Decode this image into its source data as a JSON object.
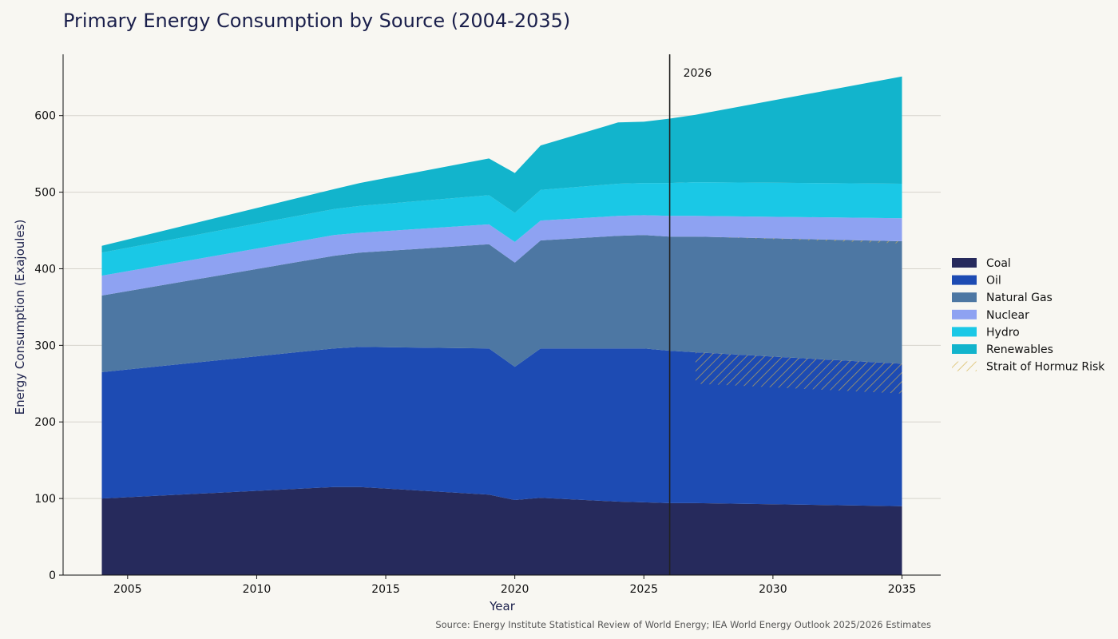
{
  "chart_data": {
    "type": "area",
    "stacked": true,
    "title": "Primary Energy Consumption by Source (2004-2035)",
    "xlabel": "Year",
    "ylabel": "Energy Consumption (Exajoules)",
    "xlim": [
      2002.5,
      2036.5
    ],
    "ylim": [
      0,
      680
    ],
    "xticks": [
      2005,
      2010,
      2015,
      2020,
      2025,
      2030,
      2035
    ],
    "yticks": [
      0,
      100,
      200,
      300,
      400,
      500,
      600
    ],
    "grid": "horizontal",
    "legend_position": "right",
    "x": [
      2004,
      2013,
      2014,
      2019,
      2020,
      2021,
      2024,
      2025,
      2026,
      2027,
      2035
    ],
    "series": [
      {
        "name": "Coal",
        "color": "#262a5c",
        "values": [
          100,
          115,
          115,
          105,
          98,
          101,
          96,
          95,
          94,
          94,
          90
        ]
      },
      {
        "name": "Oil",
        "color": "#1d4bb3",
        "values": [
          165,
          181,
          183,
          191,
          174,
          195,
          200,
          201,
          199,
          197,
          186
        ]
      },
      {
        "name": "Natural Gas",
        "color": "#4d77a3",
        "values": [
          100,
          121,
          123,
          136,
          136,
          141,
          147,
          148,
          149,
          151,
          160
        ]
      },
      {
        "name": "Nuclear",
        "color": "#8ea2f2",
        "values": [
          26,
          27,
          26,
          26,
          27,
          26,
          26,
          26,
          27,
          27,
          30
        ]
      },
      {
        "name": "Hydro",
        "color": "#1ac8e6",
        "values": [
          30,
          34,
          35,
          38,
          38,
          40,
          42,
          42,
          43,
          44,
          45
        ]
      },
      {
        "name": "Renewables",
        "color": "#12b4cc",
        "values": [
          9,
          26,
          30,
          48,
          52,
          58,
          80,
          80,
          84,
          88,
          140
        ]
      }
    ],
    "risk_band": {
      "name": "Strait of Hormuz Risk",
      "color": "#d4b44e",
      "x": [
        2027,
        2035
      ],
      "oil_lower": [
        250,
        237
      ],
      "gas_lower": [
        442,
        433
      ]
    },
    "vline": {
      "x": 2026,
      "label": "2026"
    },
    "source": "Source: Energy Institute Statistical Review of World Energy; IEA World Energy Outlook 2025/2026 Estimates"
  }
}
